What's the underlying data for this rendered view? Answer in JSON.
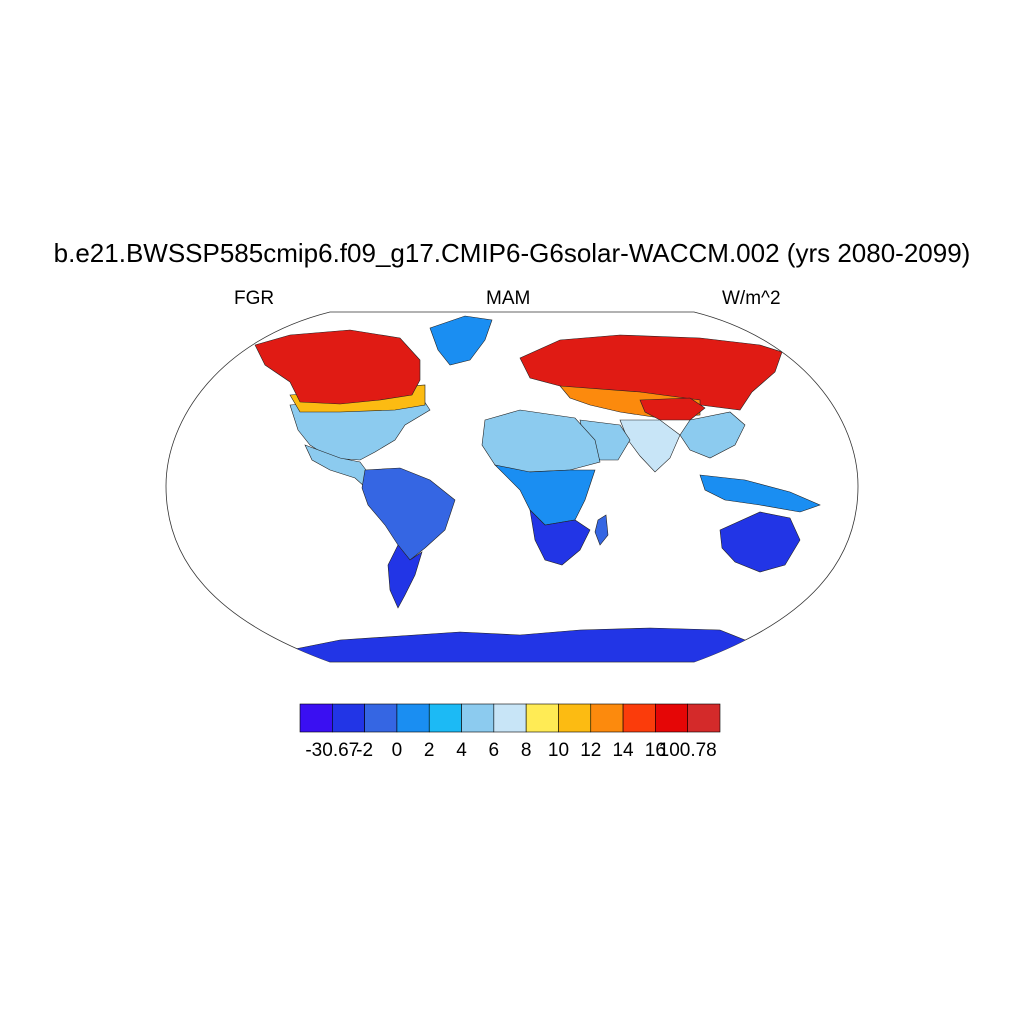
{
  "title": "b.e21.BWSSP585cmip6.f09_g17.CMIP6-G6solar-WACCM.002 (yrs 2080-2099)",
  "left_label": "FGR",
  "center_label": "MAM",
  "right_label": "W/m^2",
  "colorbar": {
    "colors": [
      "#3a0ff2",
      "#2235e6",
      "#3566e3",
      "#1a8ef2",
      "#1cbaf5",
      "#8ccbef",
      "#c8e5f7",
      "#ffeb55",
      "#fcbb12",
      "#fc8a0d",
      "#fb3c0b",
      "#e50606",
      "#d42a2a"
    ],
    "tick_labels": [
      "-30.67",
      "-2",
      "0",
      "2",
      "4",
      "6",
      "8",
      "10",
      "12",
      "14",
      "16",
      "100.78"
    ]
  },
  "map_regions": {
    "ocean": "#ffffff",
    "north_canada_alaska": "#e01b14",
    "canada_south": "#fcbb12",
    "usa": "#8ccbef",
    "mexico_central_america": "#8ccbef",
    "greenland": "#1a8ef2",
    "south_america": "#3566e3",
    "patagonia": "#2235e6",
    "europe_siberia": "#e01b14",
    "central_asia": "#fc8a0d",
    "tibet": "#e01b14",
    "china_east": "#8ccbef",
    "south_asia": "#c8e5f7",
    "arabia": "#8ccbef",
    "north_africa": "#8ccbef",
    "central_africa": "#1a8ef2",
    "southern_africa": "#2235e6",
    "madagascar": "#3566e3",
    "australia": "#2235e6",
    "indonesia": "#1a8ef2",
    "antarctica": "#2235e6"
  }
}
